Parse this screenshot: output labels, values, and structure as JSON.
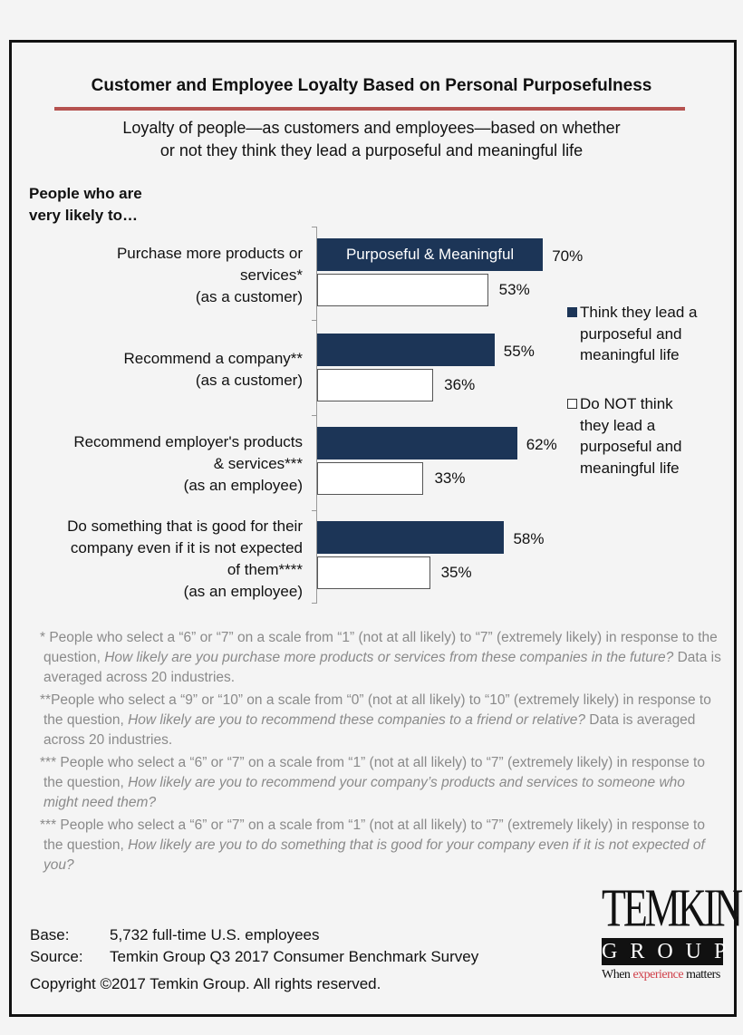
{
  "title": "Customer and Employee Loyalty Based on Personal Purposefulness",
  "subtitle_line1": "Loyalty of people—as customers and employees—based on whether",
  "subtitle_line2": "or not they think they lead a purposeful and meaningful life",
  "lead_line1": "People who are",
  "lead_line2": "very likely to…",
  "colors": {
    "purposeful": "#1c3557",
    "not_purposeful": "#ffffff",
    "rule": "#b5524f"
  },
  "chart_data": {
    "type": "bar",
    "orientation": "horizontal",
    "xlim": [
      0,
      100
    ],
    "categories": [
      [
        "Purchase more products or",
        "services*",
        "(as a customer)"
      ],
      [
        "Recommend a company**",
        "(as a customer)"
      ],
      [
        "Recommend employer's products",
        "& services***",
        "(as an employee)"
      ],
      [
        "Do something that is good for their",
        "company even if it is not expected",
        "of them****",
        "(as an employee)"
      ]
    ],
    "series": [
      {
        "name": "Think they lead a purposeful and meaningful life",
        "values": [
          70,
          55,
          62,
          58
        ],
        "labels": [
          "70%",
          "55%",
          "62%",
          "58%"
        ]
      },
      {
        "name": "Do NOT think they lead a purposeful and meaningful life",
        "values": [
          53,
          36,
          33,
          35
        ],
        "labels": [
          "53%",
          "36%",
          "33%",
          "35%"
        ]
      }
    ],
    "annotation": "Purposeful & Meaningful",
    "legend_lines": [
      [
        "Think they lead a",
        "purposeful and",
        "meaningful life"
      ],
      [
        "Do NOT think",
        "they lead a",
        "purposeful and",
        "meaningful life"
      ]
    ],
    "legend_position": "right"
  },
  "footnotes": [
    {
      "a": "* People who select a “6” or “7” on a scale from “1” (not at all likely) to “7” (extremely likely) in response to the question, ",
      "q": "How likely are you purchase more products or services from these companies in the future?",
      "b": " Data is averaged across 20 industries."
    },
    {
      "a": "**People who select a “9” or “10” on a scale from “0” (not at all likely) to “10” (extremely likely) in response to the question, ",
      "q": "How likely are you to recommend these companies to a friend or relative?",
      "b": " Data is averaged across 20 industries."
    },
    {
      "a": "*** People who select a “6” or “7” on a scale from “1” (not at all likely) to “7” (extremely likely) in response to the question, ",
      "q": "How likely are you to recommend your company’s products and services to someone who might need them?",
      "b": ""
    },
    {
      "a": "*** People who select a “6” or “7” on a scale from “1” (not at all likely) to “7” (extremely likely) in response to the question, ",
      "q": "How likely are you to do something that is good for your company even if it is not expected of you?",
      "b": ""
    }
  ],
  "base_label": "Base:",
  "base_value": "5,732 full-time U.S. employees",
  "source_label": "Source:",
  "source_value": "Temkin Group Q3 2017 Consumer Benchmark Survey",
  "copyright": "Copyright ©2017 Temkin Group. All rights reserved.",
  "logo": {
    "line1": "TEMKIN",
    "line2": "GROUP",
    "tag_a": "When ",
    "tag_b": "experience",
    "tag_c": " matters"
  }
}
